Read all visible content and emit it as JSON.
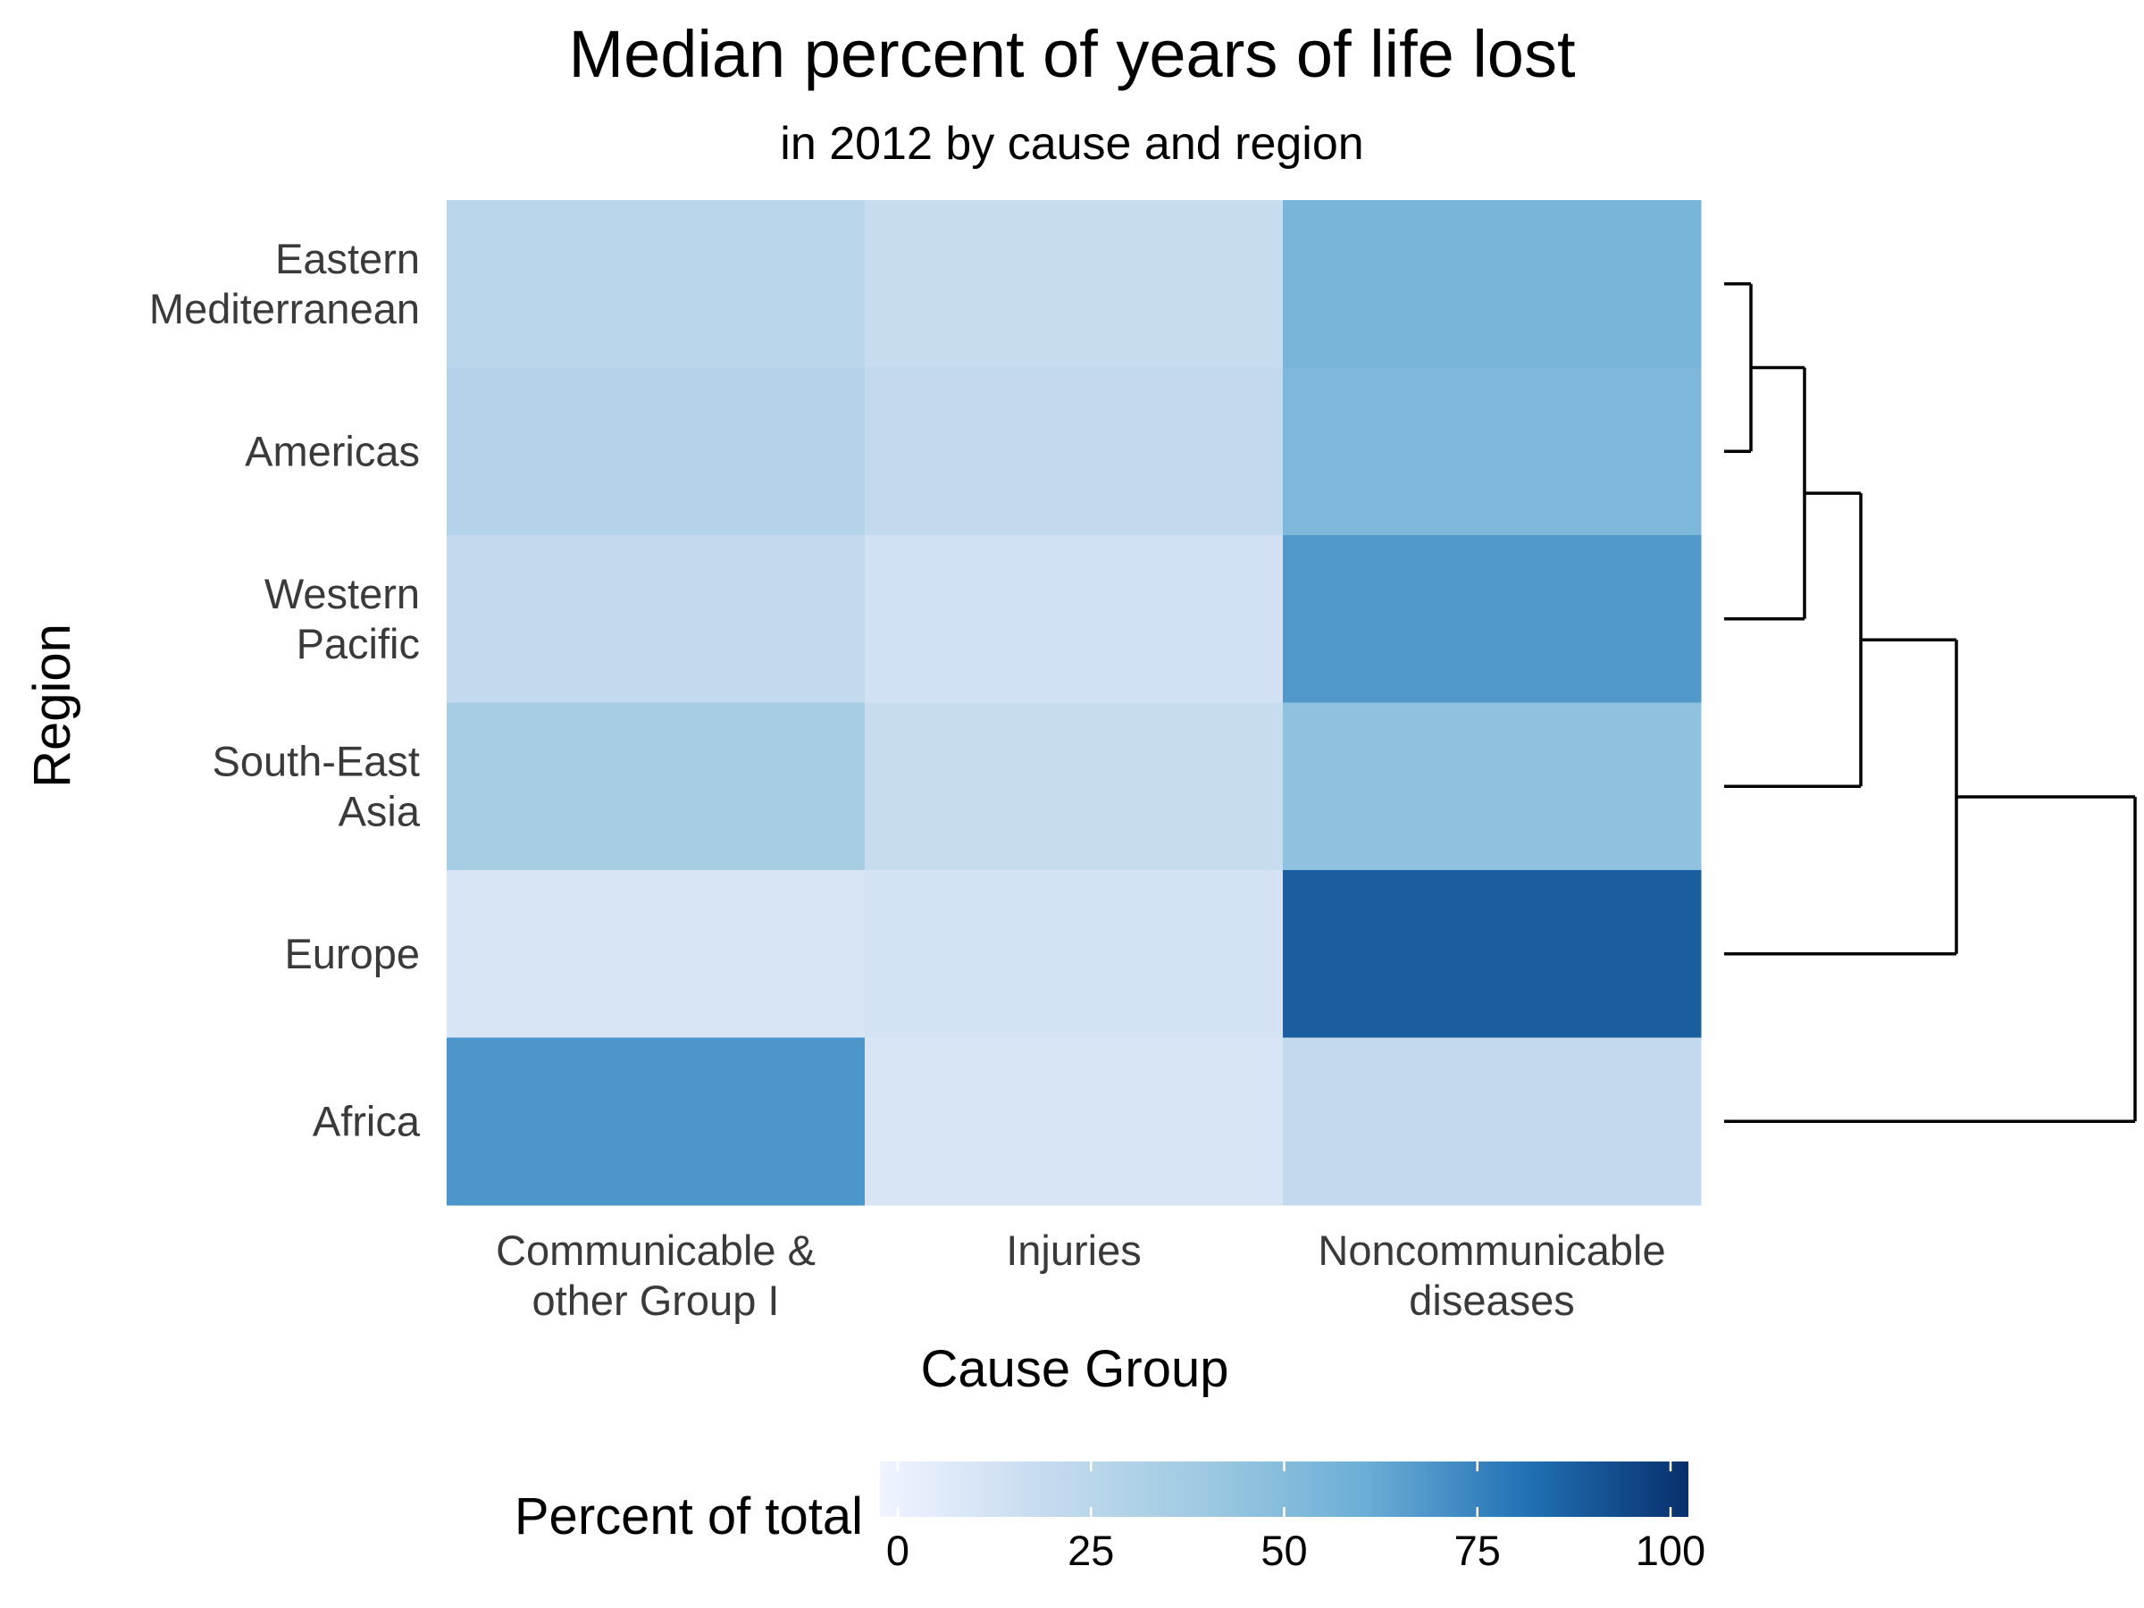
{
  "chart_data": {
    "type": "heatmap",
    "title": "Median percent of years of life lost",
    "subtitle": "in 2012 by cause and region",
    "xlabel": "Cause Group",
    "ylabel": "Region",
    "x_categories": [
      [
        "Communicable &",
        "other Group I"
      ],
      [
        "Injuries"
      ],
      [
        "Noncommunicable",
        "diseases"
      ]
    ],
    "y_categories": [
      [
        "Eastern",
        "Mediterranean"
      ],
      [
        "Americas"
      ],
      [
        "Western",
        "Pacific"
      ],
      [
        "South-East",
        "Asia"
      ],
      [
        "Europe"
      ],
      [
        "Africa"
      ]
    ],
    "values": [
      [
        26,
        19,
        55
      ],
      [
        29,
        22,
        53
      ],
      [
        22,
        15,
        67
      ],
      [
        36,
        19,
        46
      ],
      [
        12,
        14,
        86
      ],
      [
        68,
        12,
        22
      ]
    ],
    "dendrogram_side": "right",
    "legend": {
      "title": "Percent of total",
      "position": "bottom",
      "range": [
        0,
        100
      ],
      "ticks": [
        0,
        25,
        50,
        75,
        100
      ],
      "colors": [
        "#f0f4ff",
        "#c6dbef",
        "#9ecae1",
        "#6baed6",
        "#2171b5",
        "#08306b"
      ]
    },
    "grid": false
  }
}
